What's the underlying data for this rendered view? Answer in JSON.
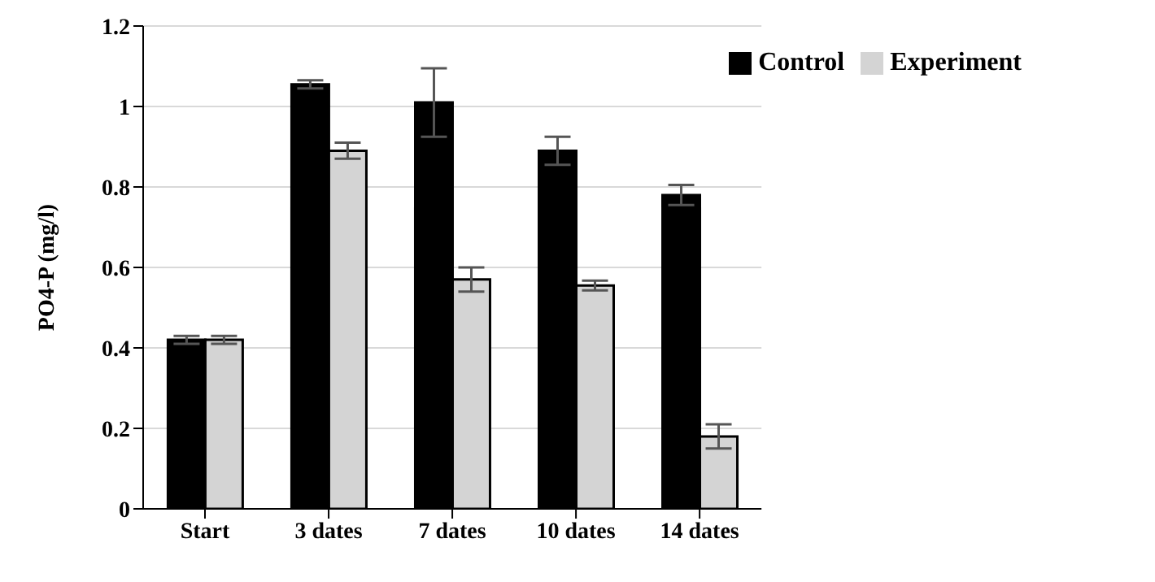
{
  "chart_data": {
    "type": "bar",
    "ylabel": "PO4-P (mg/l)",
    "categories": [
      "Start",
      "3 dates",
      "7 dates",
      "10 dates",
      "14 dates"
    ],
    "series": [
      {
        "name": "Control",
        "color": "#000000",
        "values": [
          0.42,
          1.055,
          1.01,
          0.89,
          0.78
        ],
        "errors": [
          0.01,
          0.01,
          0.085,
          0.035,
          0.025
        ]
      },
      {
        "name": "Experiment",
        "color": "#d4d4d4",
        "values": [
          0.42,
          0.89,
          0.57,
          0.555,
          0.18
        ],
        "errors": [
          0.01,
          0.02,
          0.03,
          0.012,
          0.03
        ]
      }
    ],
    "ylim": [
      0,
      1.2
    ],
    "yticks": [
      0,
      0.2,
      0.4,
      0.6,
      0.8,
      1,
      1.2
    ],
    "grid": "y",
    "legend": "top right"
  }
}
